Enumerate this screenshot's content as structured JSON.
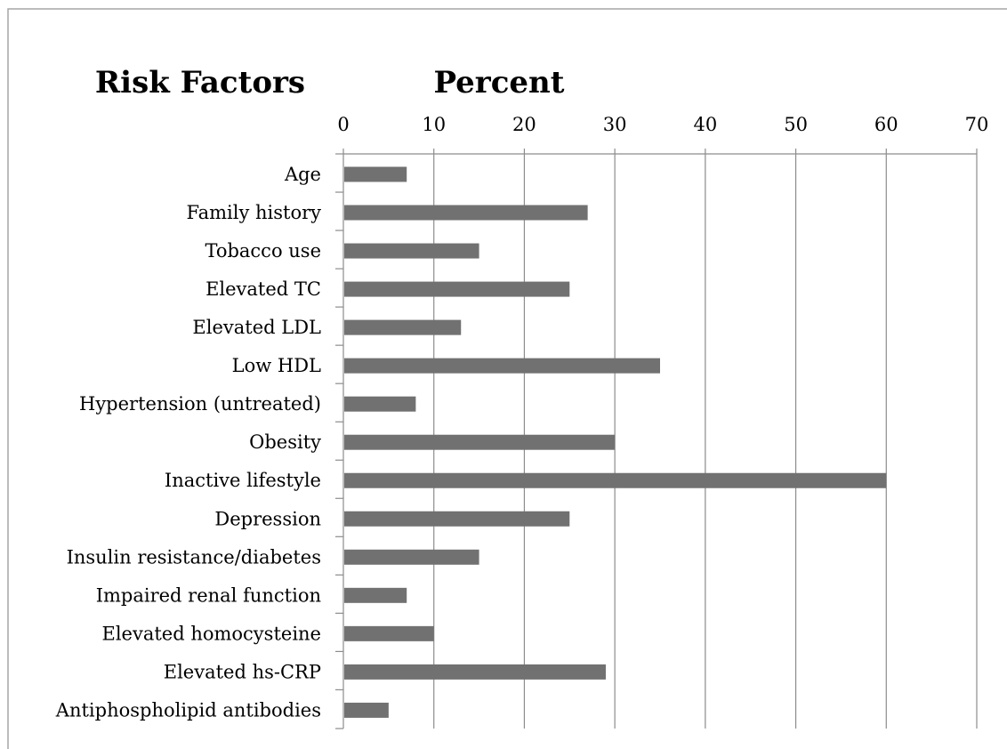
{
  "chart_data": {
    "type": "bar",
    "orientation": "horizontal",
    "row_header": "Risk Factors",
    "value_header": "Percent",
    "categories": [
      "Age",
      "Family history",
      "Tobacco use",
      "Elevated TC",
      "Elevated LDL",
      "Low HDL",
      "Hypertension (untreated)",
      "Obesity",
      "Inactive lifestyle",
      "Depression",
      "Insulin resistance/diabetes",
      "Impaired renal function",
      "Elevated homocysteine",
      "Elevated hs-CRP",
      "Antiphospholipid antibodies"
    ],
    "values": [
      7,
      27,
      15,
      25,
      13,
      35,
      8,
      30,
      60,
      25,
      15,
      7,
      10,
      29,
      5
    ],
    "xlim": [
      0,
      70
    ],
    "xticks": [
      "0",
      "10",
      "20",
      "30",
      "40",
      "50",
      "60",
      "70"
    ],
    "axis_position": "top",
    "grid": true,
    "legend": "none",
    "colors": {
      "bar": "#717171",
      "grid": "#8c8c8c",
      "border": "#a6a6a6"
    }
  }
}
